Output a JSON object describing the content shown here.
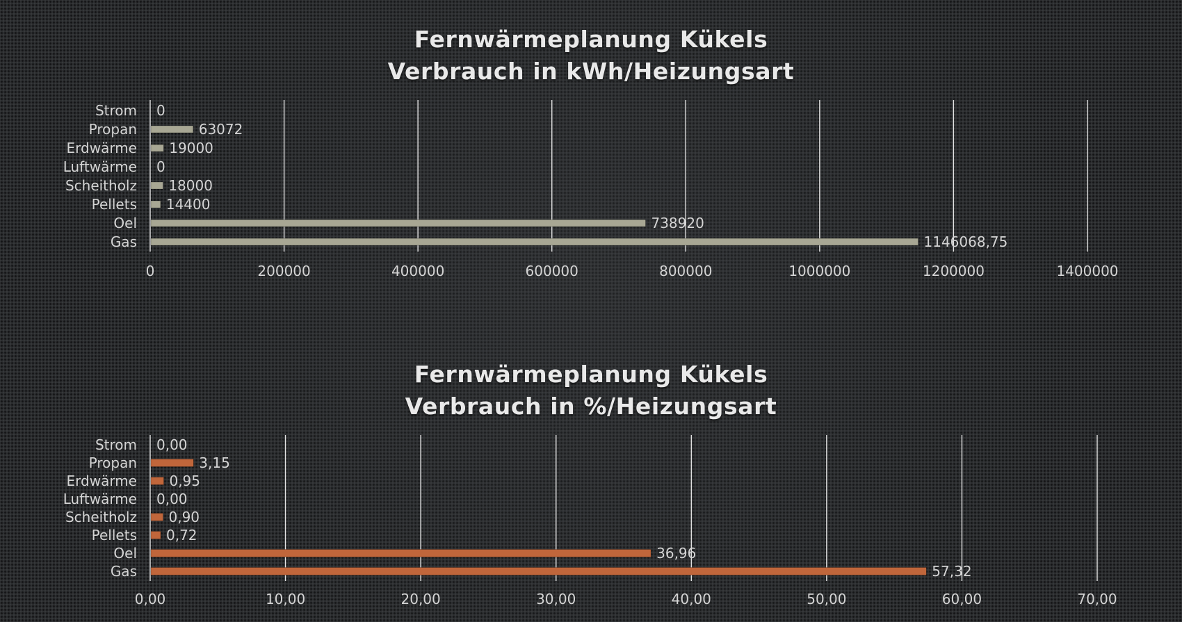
{
  "chart_data": [
    {
      "type": "bar",
      "orientation": "horizontal",
      "title": "Fernwärmeplanung Kükels",
      "subtitle": "Verbrauch in kWh/Heizungsart",
      "categories": [
        "Strom",
        "Propan",
        "Erdwärme",
        "Luftwärme",
        "Scheitholz",
        "Pellets",
        "Oel",
        "Gas"
      ],
      "values": [
        0,
        63072,
        19000,
        0,
        18000,
        14400,
        738920,
        1146068.75
      ],
      "value_labels": [
        "0",
        "63072",
        "19000",
        "0",
        "18000",
        "14400",
        "738920",
        "1146068,75"
      ],
      "xlim": [
        0,
        1400000
      ],
      "ticks": [
        "0",
        "200000",
        "400000",
        "600000",
        "800000",
        "1000000",
        "1200000",
        "1400000"
      ],
      "bar_color": "#a8a794",
      "grid": true,
      "legend": "none"
    },
    {
      "type": "bar",
      "orientation": "horizontal",
      "title": "Fernwärmeplanung Kükels",
      "subtitle": "Verbrauch in %/Heizungsart",
      "categories": [
        "Strom",
        "Propan",
        "Erdwärme",
        "Luftwärme",
        "Scheitholz",
        "Pellets",
        "Oel",
        "Gas"
      ],
      "values": [
        0.0,
        3.15,
        0.95,
        0.0,
        0.9,
        0.72,
        36.96,
        57.32
      ],
      "value_labels": [
        "0,00",
        "3,15",
        "0,95",
        "0,00",
        "0,90",
        "0,72",
        "36,96",
        "57,32"
      ],
      "xlim": [
        0,
        70
      ],
      "ticks": [
        "0,00",
        "10,00",
        "20,00",
        "30,00",
        "40,00",
        "50,00",
        "60,00",
        "70,00"
      ],
      "bar_color": "#c0663b",
      "grid": true,
      "legend": "none"
    }
  ]
}
